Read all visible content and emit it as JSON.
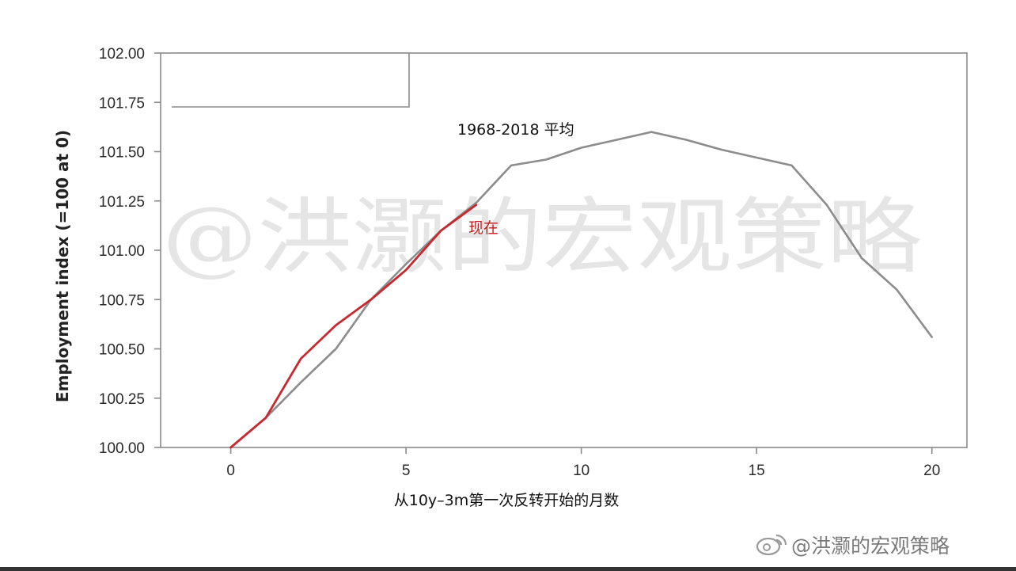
{
  "watermark": "@洪灏的宏观策略",
  "credit": "@洪灏的宏观策略",
  "credit_icon": "weibo-logo-icon",
  "colors": {
    "average": "#8c8c8c",
    "current": "#c8282e",
    "frame": "#8a8a8a",
    "watermark": "#cfcfcf"
  },
  "chart_data": {
    "type": "line",
    "title": "",
    "xlabel": "从10y–3m第一次反转开始的月数",
    "ylabel": "Employment index (=100 at 0)",
    "xlim": [
      -2,
      21
    ],
    "ylim": [
      100,
      102
    ],
    "x_ticks": [
      "0",
      "5",
      "10",
      "15",
      "20"
    ],
    "x_tick_values": [
      0,
      5,
      10,
      15,
      20
    ],
    "y_ticks": [
      "100.00",
      "100.25",
      "100.50",
      "100.75",
      "101.00",
      "101.25",
      "101.50",
      "101.75",
      "102.00"
    ],
    "y_tick_values": [
      100,
      100.25,
      100.5,
      100.75,
      101,
      101.25,
      101.5,
      101.75,
      102
    ],
    "grid": false,
    "series": [
      {
        "name": "1968-2018 平均",
        "color": "#8c8c8c",
        "x": [
          0,
          1,
          2,
          3,
          4,
          5,
          6,
          7,
          8,
          9,
          10,
          11,
          12,
          13,
          14,
          15,
          16,
          17,
          18,
          19,
          20
        ],
        "y": [
          100.0,
          100.15,
          100.33,
          100.5,
          100.75,
          100.93,
          101.1,
          101.24,
          101.43,
          101.46,
          101.52,
          101.56,
          101.6,
          101.56,
          101.51,
          101.47,
          101.43,
          101.23,
          100.96,
          100.8,
          100.56
        ]
      },
      {
        "name": "现在",
        "color": "#c8282e",
        "x": [
          0,
          1,
          2,
          3,
          4,
          5,
          6,
          7
        ],
        "y": [
          100.0,
          100.15,
          100.45,
          100.62,
          100.75,
          100.9,
          101.1,
          101.23
        ]
      }
    ]
  }
}
